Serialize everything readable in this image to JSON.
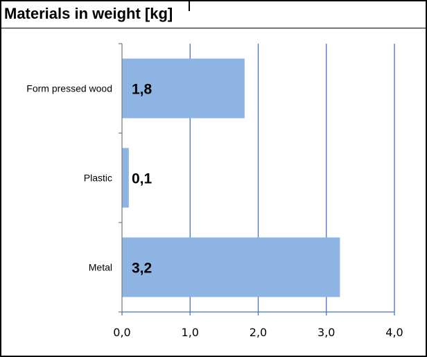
{
  "chart_data": {
    "type": "bar",
    "orientation": "horizontal",
    "title": "Materials in weight [kg]",
    "categories": [
      "Form pressed wood",
      "Plastic",
      "Metal"
    ],
    "values": [
      1.8,
      0.1,
      3.2
    ],
    "data_labels": [
      "1,8",
      "0,1",
      "3,2"
    ],
    "x_ticks": [
      0,
      1,
      2,
      3,
      4
    ],
    "x_tick_labels": [
      "0,0",
      "1,0",
      "2,0",
      "3,0",
      "4,0"
    ],
    "xlim": [
      0,
      4
    ],
    "xlabel": "",
    "ylabel": "",
    "grid": true,
    "legend": false,
    "bar_color": "#8eb4e3",
    "grid_color": "#4472c4",
    "axis_color": "#808080"
  }
}
